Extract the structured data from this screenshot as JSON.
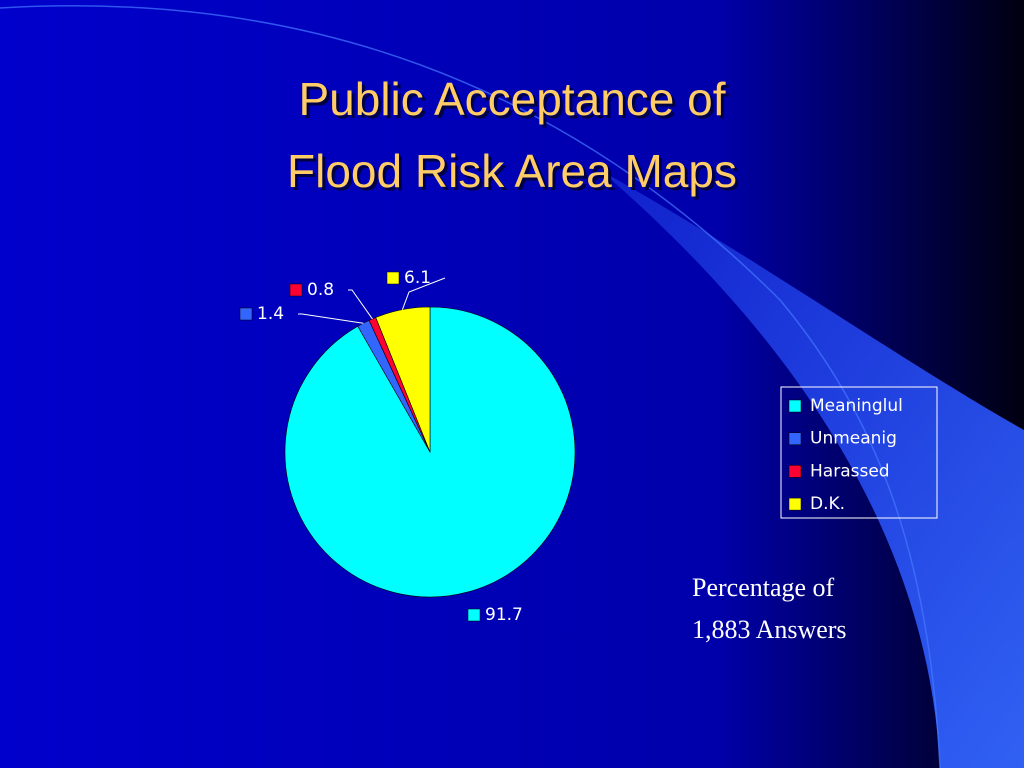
{
  "chart_data": {
    "type": "pie",
    "title": [
      "Public Acceptance  of",
      "Flood Risk Area Maps"
    ],
    "categories": [
      "Meaninglul",
      "Unmeanig",
      "Harassed",
      "D.K."
    ],
    "values": [
      91.7,
      1.4,
      0.8,
      6.1
    ],
    "colors": [
      "#00ffff",
      "#3366ff",
      "#ff0033",
      "#ffff00"
    ],
    "legend": "right",
    "annotation": [
      "Percentage of",
      "1,883 Answers"
    ]
  }
}
